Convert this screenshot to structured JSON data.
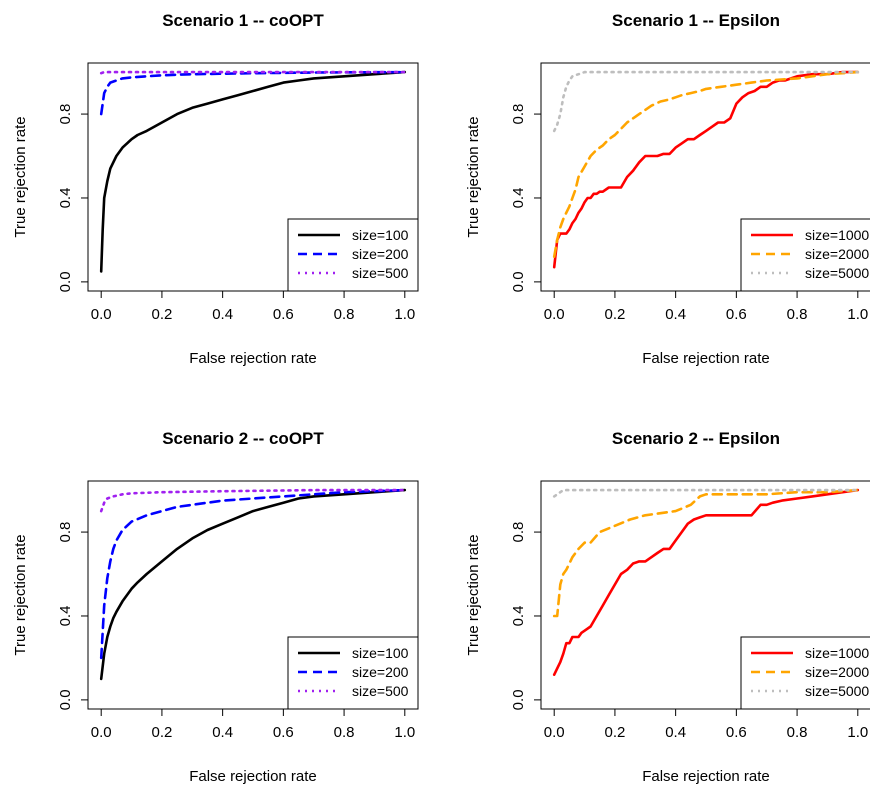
{
  "chart_data": [
    {
      "type": "line",
      "title": "Scenario 1 -- coOPT",
      "xlabel": "False rejection rate",
      "ylabel": "True rejection rate",
      "xlim": [
        0,
        1
      ],
      "ylim": [
        0,
        1
      ],
      "xticks": [
        "0.0",
        "0.2",
        "0.4",
        "0.6",
        "0.8",
        "1.0"
      ],
      "yticks": [
        "0.0",
        "0.4",
        "0.8"
      ],
      "legend_position": "bottom-right",
      "series": [
        {
          "name": "size=100",
          "color": "#000000",
          "dash": "solid",
          "x": [
            0,
            0.005,
            0.01,
            0.02,
            0.03,
            0.05,
            0.07,
            0.1,
            0.12,
            0.15,
            0.2,
            0.25,
            0.3,
            0.35,
            0.4,
            0.45,
            0.5,
            0.55,
            0.6,
            0.65,
            0.7,
            0.8,
            0.9,
            1.0
          ],
          "y": [
            0.05,
            0.25,
            0.4,
            0.48,
            0.54,
            0.6,
            0.64,
            0.68,
            0.7,
            0.72,
            0.76,
            0.8,
            0.83,
            0.85,
            0.87,
            0.89,
            0.91,
            0.93,
            0.95,
            0.96,
            0.97,
            0.98,
            0.99,
            1.0
          ]
        },
        {
          "name": "size=200",
          "color": "#0000ff",
          "dash": "dashed",
          "x": [
            0,
            0.005,
            0.01,
            0.02,
            0.03,
            0.05,
            0.07,
            0.1,
            0.15,
            0.2,
            0.3,
            0.5,
            0.7,
            1.0
          ],
          "y": [
            0.8,
            0.85,
            0.9,
            0.93,
            0.95,
            0.96,
            0.97,
            0.975,
            0.98,
            0.985,
            0.99,
            0.995,
            0.998,
            1.0
          ]
        },
        {
          "name": "size=500",
          "color": "#a020f0",
          "dash": "dotted",
          "x": [
            0,
            0.01,
            1.0
          ],
          "y": [
            0.995,
            1.0,
            1.0
          ]
        }
      ]
    },
    {
      "type": "line",
      "title": "Scenario 1 -- Epsilon",
      "xlabel": "False rejection rate",
      "ylabel": "True rejection rate",
      "xlim": [
        0,
        1
      ],
      "ylim": [
        0,
        1
      ],
      "xticks": [
        "0.0",
        "0.2",
        "0.4",
        "0.6",
        "0.8",
        "1.0"
      ],
      "yticks": [
        "0.0",
        "0.4",
        "0.8"
      ],
      "legend_position": "bottom-right",
      "series": [
        {
          "name": "size=1000",
          "color": "#ff0000",
          "dash": "solid",
          "x": [
            0,
            0.01,
            0.02,
            0.04,
            0.05,
            0.06,
            0.07,
            0.08,
            0.09,
            0.1,
            0.11,
            0.12,
            0.13,
            0.14,
            0.15,
            0.16,
            0.18,
            0.2,
            0.22,
            0.24,
            0.26,
            0.28,
            0.3,
            0.32,
            0.34,
            0.36,
            0.38,
            0.4,
            0.42,
            0.44,
            0.46,
            0.48,
            0.5,
            0.52,
            0.54,
            0.56,
            0.58,
            0.6,
            0.62,
            0.64,
            0.66,
            0.68,
            0.7,
            0.72,
            0.74,
            0.76,
            0.78,
            0.8,
            0.85,
            0.9,
            0.95,
            1.0
          ],
          "y": [
            0.07,
            0.2,
            0.23,
            0.23,
            0.25,
            0.28,
            0.3,
            0.33,
            0.35,
            0.38,
            0.4,
            0.4,
            0.42,
            0.42,
            0.43,
            0.43,
            0.45,
            0.45,
            0.45,
            0.5,
            0.53,
            0.57,
            0.6,
            0.6,
            0.6,
            0.61,
            0.61,
            0.64,
            0.66,
            0.68,
            0.68,
            0.7,
            0.72,
            0.74,
            0.76,
            0.76,
            0.78,
            0.85,
            0.88,
            0.9,
            0.91,
            0.93,
            0.93,
            0.95,
            0.96,
            0.96,
            0.97,
            0.98,
            0.99,
            0.99,
            1.0,
            1.0
          ]
        },
        {
          "name": "size=2000",
          "color": "#ffa500",
          "dash": "dashed",
          "x": [
            0,
            0.01,
            0.02,
            0.03,
            0.04,
            0.05,
            0.06,
            0.07,
            0.08,
            0.1,
            0.12,
            0.14,
            0.16,
            0.18,
            0.2,
            0.22,
            0.24,
            0.26,
            0.28,
            0.3,
            0.32,
            0.35,
            0.38,
            0.4,
            0.42,
            0.45,
            0.48,
            0.5,
            0.55,
            0.6,
            0.65,
            0.7,
            0.8,
            0.9,
            1.0
          ],
          "y": [
            0.12,
            0.2,
            0.26,
            0.3,
            0.33,
            0.36,
            0.4,
            0.44,
            0.5,
            0.55,
            0.6,
            0.63,
            0.65,
            0.68,
            0.7,
            0.73,
            0.76,
            0.78,
            0.8,
            0.82,
            0.84,
            0.86,
            0.87,
            0.88,
            0.89,
            0.9,
            0.91,
            0.92,
            0.93,
            0.94,
            0.95,
            0.96,
            0.97,
            0.99,
            1.0
          ]
        },
        {
          "name": "size=5000",
          "color": "#bebebe",
          "dash": "dotted",
          "x": [
            0,
            0.01,
            0.02,
            0.03,
            0.04,
            0.05,
            0.06,
            0.08,
            0.1,
            1.0
          ],
          "y": [
            0.72,
            0.75,
            0.8,
            0.88,
            0.93,
            0.96,
            0.98,
            0.99,
            1.0,
            1.0
          ]
        }
      ]
    },
    {
      "type": "line",
      "title": "Scenario 2 -- coOPT",
      "xlabel": "False rejection rate",
      "ylabel": "True rejection rate",
      "xlim": [
        0,
        1
      ],
      "ylim": [
        0,
        1
      ],
      "xticks": [
        "0.0",
        "0.2",
        "0.4",
        "0.6",
        "0.8",
        "1.0"
      ],
      "yticks": [
        "0.0",
        "0.4",
        "0.8"
      ],
      "legend_position": "bottom-right",
      "series": [
        {
          "name": "size=100",
          "color": "#000000",
          "dash": "solid",
          "x": [
            0,
            0.01,
            0.02,
            0.03,
            0.04,
            0.05,
            0.07,
            0.1,
            0.12,
            0.15,
            0.2,
            0.25,
            0.3,
            0.35,
            0.4,
            0.45,
            0.5,
            0.55,
            0.6,
            0.65,
            0.7,
            0.8,
            0.9,
            1.0
          ],
          "y": [
            0.1,
            0.22,
            0.3,
            0.35,
            0.39,
            0.42,
            0.47,
            0.53,
            0.56,
            0.6,
            0.66,
            0.72,
            0.77,
            0.81,
            0.84,
            0.87,
            0.9,
            0.92,
            0.94,
            0.96,
            0.97,
            0.98,
            0.99,
            1.0
          ]
        },
        {
          "name": "size=200",
          "color": "#0000ff",
          "dash": "dashed",
          "x": [
            0,
            0.01,
            0.02,
            0.03,
            0.04,
            0.05,
            0.07,
            0.1,
            0.15,
            0.2,
            0.25,
            0.3,
            0.4,
            0.5,
            0.6,
            0.7,
            0.8,
            0.9,
            1.0
          ],
          "y": [
            0.2,
            0.45,
            0.58,
            0.66,
            0.72,
            0.76,
            0.81,
            0.85,
            0.88,
            0.9,
            0.92,
            0.93,
            0.95,
            0.96,
            0.97,
            0.98,
            0.99,
            0.995,
            1.0
          ]
        },
        {
          "name": "size=500",
          "color": "#a020f0",
          "dash": "dotted",
          "x": [
            0,
            0.01,
            0.02,
            0.04,
            0.07,
            0.1,
            0.2,
            0.4,
            0.7,
            1.0
          ],
          "y": [
            0.9,
            0.94,
            0.96,
            0.97,
            0.98,
            0.985,
            0.99,
            0.995,
            1.0,
            1.0
          ]
        }
      ]
    },
    {
      "type": "line",
      "title": "Scenario 2 -- Epsilon",
      "xlabel": "False rejection rate",
      "ylabel": "True rejection rate",
      "xlim": [
        0,
        1
      ],
      "ylim": [
        0,
        1
      ],
      "xticks": [
        "0.0",
        "0.2",
        "0.4",
        "0.6",
        "0.8",
        "1.0"
      ],
      "yticks": [
        "0.0",
        "0.4",
        "0.8"
      ],
      "legend_position": "bottom-right",
      "series": [
        {
          "name": "size=1000",
          "color": "#ff0000",
          "dash": "solid",
          "x": [
            0,
            0.01,
            0.02,
            0.03,
            0.04,
            0.05,
            0.06,
            0.07,
            0.08,
            0.09,
            0.1,
            0.12,
            0.14,
            0.16,
            0.18,
            0.2,
            0.22,
            0.24,
            0.26,
            0.28,
            0.3,
            0.32,
            0.34,
            0.36,
            0.38,
            0.4,
            0.42,
            0.44,
            0.46,
            0.48,
            0.5,
            0.52,
            0.55,
            0.6,
            0.65,
            0.68,
            0.7,
            0.72,
            0.75,
            0.8,
            0.85,
            0.9,
            0.95,
            1.0
          ],
          "y": [
            0.12,
            0.15,
            0.18,
            0.22,
            0.27,
            0.27,
            0.3,
            0.3,
            0.3,
            0.32,
            0.33,
            0.35,
            0.4,
            0.45,
            0.5,
            0.55,
            0.6,
            0.62,
            0.65,
            0.66,
            0.66,
            0.68,
            0.7,
            0.72,
            0.72,
            0.76,
            0.8,
            0.84,
            0.86,
            0.87,
            0.88,
            0.88,
            0.88,
            0.88,
            0.88,
            0.93,
            0.93,
            0.94,
            0.95,
            0.96,
            0.97,
            0.98,
            0.99,
            1.0
          ]
        },
        {
          "name": "size=2000",
          "color": "#ffa500",
          "dash": "dashed",
          "x": [
            0,
            0.01,
            0.02,
            0.03,
            0.04,
            0.05,
            0.06,
            0.07,
            0.08,
            0.1,
            0.12,
            0.15,
            0.2,
            0.25,
            0.3,
            0.35,
            0.4,
            0.45,
            0.48,
            0.5,
            0.6,
            0.7,
            0.8,
            0.9,
            1.0
          ],
          "y": [
            0.4,
            0.4,
            0.55,
            0.6,
            0.62,
            0.65,
            0.68,
            0.7,
            0.72,
            0.75,
            0.75,
            0.8,
            0.83,
            0.86,
            0.88,
            0.89,
            0.9,
            0.93,
            0.97,
            0.98,
            0.98,
            0.98,
            0.99,
            0.99,
            1.0
          ]
        },
        {
          "name": "size=5000",
          "color": "#bebebe",
          "dash": "dotted",
          "x": [
            0,
            0.01,
            0.02,
            0.03,
            1.0
          ],
          "y": [
            0.97,
            0.98,
            0.99,
            1.0,
            1.0
          ]
        }
      ]
    }
  ]
}
